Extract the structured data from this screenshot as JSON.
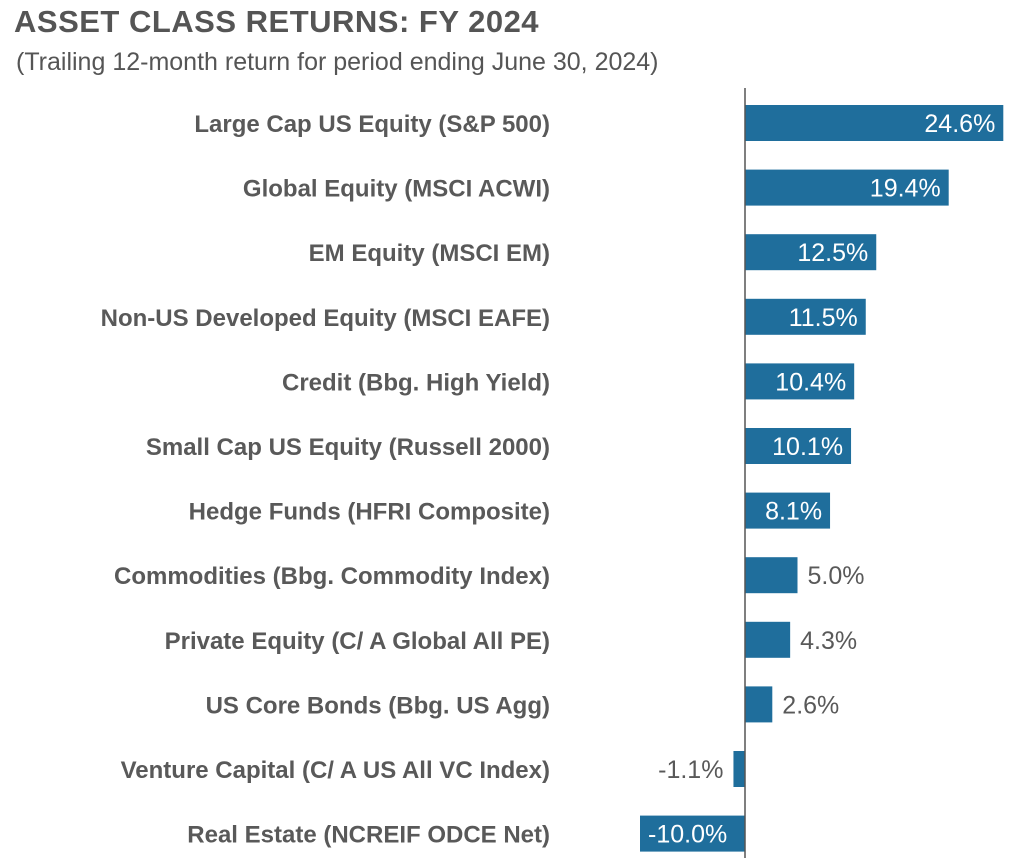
{
  "chart_data": {
    "type": "bar",
    "orientation": "horizontal",
    "title": "ASSET CLASS RETURNS: FY 2024",
    "subtitle": "(Trailing 12-month return for period ending June 30, 2024)",
    "categories": [
      "Large Cap US Equity (S&P 500)",
      "Global Equity (MSCI ACWI)",
      "EM Equity (MSCI EM)",
      "Non-US Developed Equity (MSCI EAFE)",
      "Credit (Bbg. High Yield)",
      "Small Cap US Equity (Russell 2000)",
      "Hedge Funds (HFRI Composite)",
      "Commodities (Bbg. Commodity Index)",
      "Private Equity (C/ A Global All PE)",
      "US Core Bonds (Bbg. US Agg)",
      "Venture Capital (C/ A US All VC Index)",
      "Real Estate (NCREIF ODCE Net)"
    ],
    "values": [
      24.6,
      19.4,
      12.5,
      11.5,
      10.4,
      10.1,
      8.1,
      5.0,
      4.3,
      2.6,
      -1.1,
      -10.0
    ],
    "value_labels": [
      "24.6%",
      "19.4%",
      "12.5%",
      "11.5%",
      "10.4%",
      "10.1%",
      "8.1%",
      "5.0%",
      "4.3%",
      "2.6%",
      "-1.1%",
      "-10.0%"
    ],
    "xlim": [
      -10.0,
      25.0
    ],
    "grid": false,
    "legend": "none",
    "colors": {
      "bar": "#1f6e9c",
      "axis": "#555555",
      "label_inside": "#ffffff",
      "label_outside": "#595959"
    }
  }
}
